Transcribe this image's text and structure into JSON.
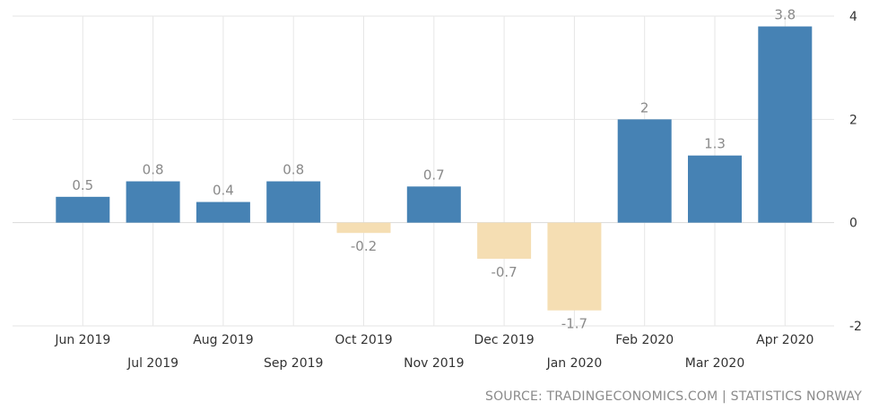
{
  "chart_data": {
    "type": "bar",
    "categories": [
      "Jun 2019",
      "Jul 2019",
      "Aug 2019",
      "Sep 2019",
      "Oct 2019",
      "Nov 2019",
      "Dec 2019",
      "Jan 2020",
      "Feb 2020",
      "Mar 2020",
      "Apr 2020"
    ],
    "values": [
      0.5,
      0.8,
      0.4,
      0.8,
      -0.2,
      0.7,
      -0.7,
      -1.7,
      2,
      1.3,
      3.8
    ],
    "value_labels": [
      "0.5",
      "0.8",
      "0.4",
      "0.8",
      "-0.2",
      "0.7",
      "-0.7",
      "-1.7",
      "2",
      "1.3",
      "3.8"
    ],
    "title": "",
    "xlabel": "",
    "ylabel": "",
    "ylim": [
      -2,
      4
    ],
    "yticks": [
      4,
      2,
      0,
      -2
    ],
    "y_axis_side": "right",
    "grid": true,
    "legend": "none",
    "colors": {
      "positive": "#4682b4",
      "negative": "#f5deb3",
      "grid": "#e6e6e6",
      "zero_line": "#d9d9d9"
    },
    "source": "SOURCE: TRADINGECONOMICS.COM | STATISTICS NORWAY"
  }
}
